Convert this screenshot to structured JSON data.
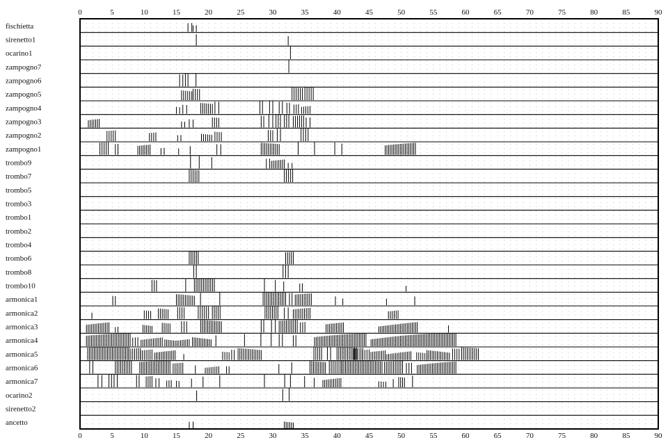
{
  "chart_data": {
    "type": "timeline",
    "xlim": [
      0,
      90
    ],
    "x_ticks": [
      0,
      5,
      10,
      15,
      20,
      25,
      30,
      35,
      40,
      45,
      50,
      55,
      60,
      65,
      70,
      75,
      80,
      85,
      90
    ],
    "x_tick_labels": [
      "0",
      "5",
      "10",
      "15",
      "20",
      "25",
      "30",
      "35",
      "40",
      "45",
      "50",
      "55",
      "60",
      "65",
      "70",
      "75",
      "80",
      "85",
      "90"
    ],
    "grid": "dotted",
    "mark_color": "#000000",
    "rows": [
      {
        "label": "fischietta",
        "spans": [
          [
            16.8,
            17.4
          ],
          [
            17.6,
            18.1
          ]
        ]
      },
      {
        "label": "sirenetto1",
        "spans": [
          [
            18.0,
            18.2
          ],
          [
            32.3,
            32.5
          ]
        ]
      },
      {
        "label": "ocarino1",
        "spans": [
          [
            32.6,
            32.9
          ]
        ]
      },
      {
        "label": "zampogno7",
        "spans": [
          [
            32.4,
            32.6
          ]
        ]
      },
      {
        "label": "zampogno6",
        "spans": [
          [
            15.5,
            16.0
          ],
          [
            16.4,
            16.8
          ],
          [
            17.9,
            18.2
          ]
        ]
      },
      {
        "label": "zampogno5",
        "spans": [
          [
            15.8,
            17.4
          ],
          [
            17.6,
            18.6
          ],
          [
            33.0,
            34.6
          ],
          [
            35.0,
            36.3
          ]
        ]
      },
      {
        "label": "zampogno4",
        "spans": [
          [
            15.0,
            15.5
          ],
          [
            16.0,
            16.6
          ],
          [
            18.8,
            20.6
          ],
          [
            21.0,
            21.6
          ],
          [
            28.0,
            28.4
          ],
          [
            29.5,
            30.0
          ],
          [
            31.0,
            31.5
          ],
          [
            32.2,
            32.6
          ],
          [
            33.3,
            34.0
          ],
          [
            34.5,
            35.8
          ]
        ]
      },
      {
        "label": "zampogno3",
        "spans": [
          [
            1.3,
            3.0
          ],
          [
            15.8,
            16.3
          ],
          [
            17.0,
            17.6
          ],
          [
            20.6,
            21.6
          ],
          [
            28.2,
            28.6
          ],
          [
            29.4,
            30.0
          ],
          [
            30.5,
            31.2
          ],
          [
            31.8,
            32.5
          ],
          [
            33.2,
            34.8
          ],
          [
            35.2,
            35.8
          ]
        ]
      },
      {
        "label": "zampogno2",
        "spans": [
          [
            4.2,
            5.5
          ],
          [
            10.8,
            11.8
          ],
          [
            15.2,
            15.7
          ],
          [
            18.9,
            20.5
          ],
          [
            21.0,
            22.0
          ],
          [
            29.3,
            30.0
          ],
          [
            30.7,
            31.2
          ],
          [
            34.4,
            35.5
          ]
        ]
      },
      {
        "label": "zampogno1",
        "spans": [
          [
            3.1,
            4.4
          ],
          [
            5.5,
            5.9
          ],
          [
            9.0,
            10.9
          ],
          [
            12.6,
            13.1
          ],
          [
            15.2,
            15.5
          ],
          [
            17.0,
            17.3
          ],
          [
            21.3,
            21.9
          ],
          [
            28.2,
            31.0
          ],
          [
            33.8,
            34.1
          ],
          [
            36.4,
            36.6
          ],
          [
            39.5,
            39.8
          ],
          [
            40.6,
            40.9
          ],
          [
            47.5,
            52.2
          ]
        ]
      },
      {
        "label": "trombo9",
        "spans": [
          [
            17.1,
            17.3
          ],
          [
            18.4,
            18.7
          ],
          [
            20.4,
            20.6
          ],
          [
            29.0,
            29.5
          ],
          [
            29.8,
            31.8
          ],
          [
            32.4,
            33.0
          ]
        ]
      },
      {
        "label": "trombo7",
        "spans": [
          [
            17.0,
            18.5
          ],
          [
            31.8,
            33.1
          ]
        ]
      },
      {
        "label": "trombo5",
        "spans": []
      },
      {
        "label": "trombo3",
        "spans": []
      },
      {
        "label": "trombo1",
        "spans": []
      },
      {
        "label": "trombo2",
        "spans": []
      },
      {
        "label": "trombo4",
        "spans": []
      },
      {
        "label": "trombo6",
        "spans": [
          [
            17.0,
            18.4
          ],
          [
            32.0,
            33.2
          ]
        ]
      },
      {
        "label": "trombo8",
        "spans": [
          [
            17.7,
            18.1
          ],
          [
            31.6,
            32.4
          ]
        ]
      },
      {
        "label": "trombo10",
        "spans": [
          [
            11.2,
            11.9
          ],
          [
            16.3,
            16.6
          ],
          [
            17.8,
            20.9
          ],
          [
            28.6,
            28.8
          ],
          [
            30.3,
            30.5
          ],
          [
            31.6,
            31.8
          ],
          [
            34.2,
            34.6
          ],
          [
            50.6,
            50.9
          ]
        ]
      },
      {
        "label": "armonica1",
        "spans": [
          [
            5.1,
            5.5
          ],
          [
            15.0,
            17.8
          ],
          [
            18.6,
            18.9
          ],
          [
            21.6,
            21.9
          ],
          [
            28.5,
            32.0
          ],
          [
            32.6,
            33.0
          ],
          [
            33.5,
            36.0
          ],
          [
            39.6,
            39.9
          ],
          [
            40.8,
            41.0
          ],
          [
            47.6,
            47.8
          ],
          [
            52.0,
            52.2
          ]
        ]
      },
      {
        "label": "armonica2",
        "spans": [
          [
            1.7,
            2.0
          ],
          [
            10.0,
            11.0
          ],
          [
            12.2,
            13.7
          ],
          [
            15.2,
            16.2
          ],
          [
            18.4,
            20.0
          ],
          [
            20.6,
            21.8
          ],
          [
            28.8,
            30.8
          ],
          [
            31.8,
            32.4
          ],
          [
            33.2,
            35.8
          ],
          [
            48.0,
            49.5
          ]
        ]
      },
      {
        "label": "armonica3",
        "spans": [
          [
            1.0,
            4.5
          ],
          [
            5.5,
            5.9
          ],
          [
            9.8,
            11.2
          ],
          [
            12.8,
            14.0
          ],
          [
            15.8,
            16.6
          ],
          [
            18.8,
            22.0
          ],
          [
            28.2,
            28.6
          ],
          [
            29.8,
            30.4
          ],
          [
            31.0,
            33.8
          ],
          [
            34.3,
            35.0
          ],
          [
            38.3,
            41.0
          ],
          [
            46.5,
            52.5
          ],
          [
            57.2,
            57.5
          ]
        ]
      },
      {
        "label": "armonica4",
        "spans": [
          [
            1.0,
            7.8
          ],
          [
            8.2,
            9.0
          ],
          [
            9.5,
            12.8
          ],
          [
            13.2,
            17.0
          ],
          [
            17.5,
            20.4
          ],
          [
            21.0,
            21.3
          ],
          [
            25.5,
            25.7
          ],
          [
            28.0,
            28.3
          ],
          [
            29.6,
            29.9
          ],
          [
            31.0,
            31.5
          ],
          [
            33.2,
            33.6
          ],
          [
            36.5,
            44.5
          ],
          [
            45.3,
            58.5
          ]
        ]
      },
      {
        "label": "armonica5",
        "spans": [
          [
            1.2,
            7.6
          ],
          [
            7.6,
            9.4
          ],
          [
            9.4,
            11.2
          ],
          [
            11.6,
            14.8
          ],
          [
            16.0,
            16.3
          ],
          [
            22.2,
            23.2
          ],
          [
            23.6,
            24.0
          ],
          [
            24.6,
            28.2
          ],
          [
            36.4,
            37.6
          ],
          [
            38.5,
            39.0
          ],
          [
            40.0,
            43.0
          ],
          [
            42.6,
            44.0
          ],
          [
            44.0,
            45.0
          ],
          [
            45.0,
            47.5
          ],
          [
            47.5,
            51.5
          ],
          [
            52.4,
            54.0
          ],
          [
            54.0,
            57.5
          ],
          [
            58.0,
            59.0
          ],
          [
            59.4,
            62.0
          ]
        ]
      },
      {
        "label": "armonica6",
        "spans": [
          [
            1.5,
            2.0
          ],
          [
            5.5,
            8.0
          ],
          [
            9.3,
            14.0
          ],
          [
            14.5,
            16.0
          ],
          [
            17.8,
            18.1
          ],
          [
            19.5,
            21.6
          ],
          [
            22.8,
            23.2
          ],
          [
            30.8,
            31.1
          ],
          [
            32.8,
            33.1
          ],
          [
            35.8,
            38.2
          ],
          [
            38.8,
            40.6
          ],
          [
            40.8,
            47.0
          ],
          [
            47.4,
            50.2
          ],
          [
            50.8,
            51.6
          ],
          [
            52.5,
            58.5
          ]
        ]
      },
      {
        "label": "armonica7",
        "spans": [
          [
            2.8,
            3.4
          ],
          [
            4.5,
            4.9
          ],
          [
            5.3,
            5.8
          ],
          [
            8.8,
            9.2
          ],
          [
            10.3,
            11.2
          ],
          [
            11.8,
            12.3
          ],
          [
            13.5,
            14.2
          ],
          [
            15.0,
            15.4
          ],
          [
            17.2,
            17.5
          ],
          [
            19.0,
            19.3
          ],
          [
            21.6,
            21.9
          ],
          [
            28.6,
            28.8
          ],
          [
            31.7,
            32.0
          ],
          [
            32.6,
            32.9
          ],
          [
            34.8,
            35.1
          ],
          [
            36.3,
            36.6
          ],
          [
            37.8,
            40.6
          ],
          [
            46.5,
            47.6
          ],
          [
            48.6,
            48.9
          ],
          [
            49.6,
            50.5
          ],
          [
            51.6,
            51.9
          ]
        ]
      },
      {
        "label": "ocarino2",
        "spans": [
          [
            18.0,
            18.3
          ],
          [
            31.4,
            31.7
          ],
          [
            32.4,
            32.7
          ]
        ]
      },
      {
        "label": "sirenetto2",
        "spans": []
      },
      {
        "label": "ancetto",
        "spans": [
          [
            17.0,
            17.6
          ],
          [
            31.8,
            33.2
          ]
        ]
      }
    ]
  }
}
